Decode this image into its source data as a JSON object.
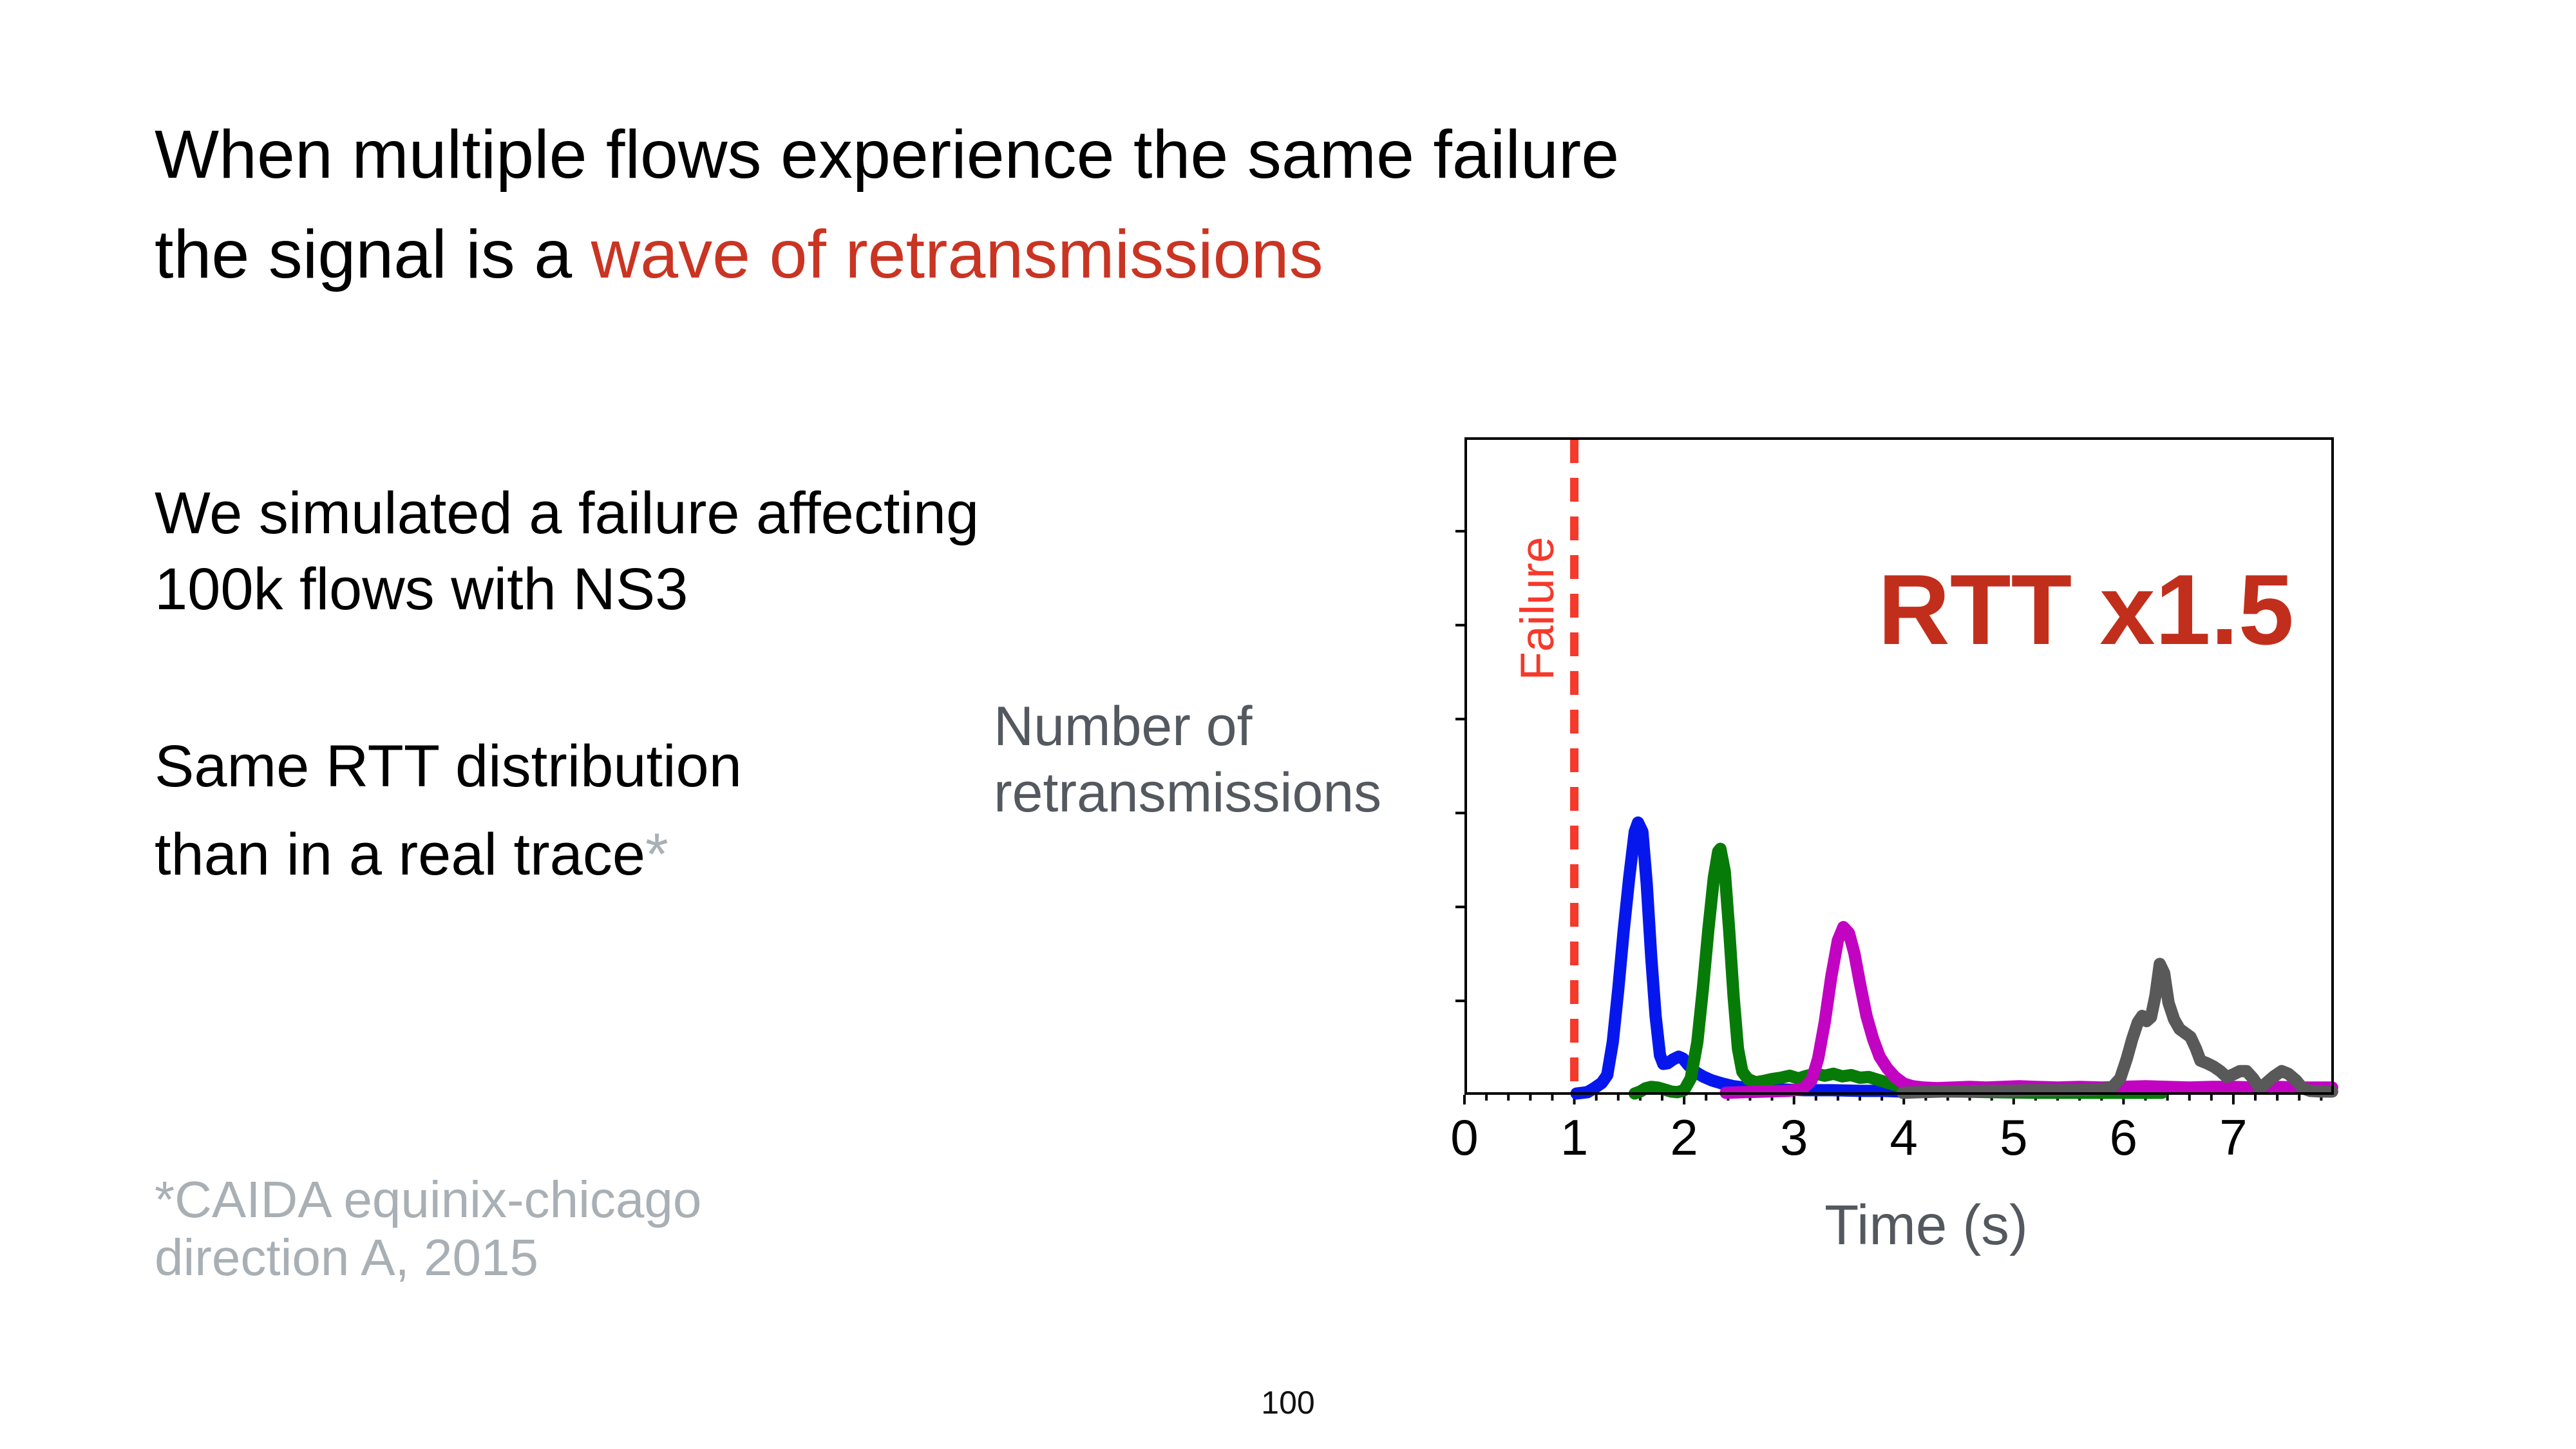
{
  "slide": {
    "background": "#ffffff",
    "title": {
      "line1": "When multiple flows experience the same failure",
      "line2_prefix": "the signal is a ",
      "line2_highlight": "wave of retransmissions"
    },
    "paragraph1": {
      "line1": "We simulated a failure affecting",
      "line2": "100k flows with NS3"
    },
    "paragraph2": {
      "line1": "Same RTT distribution",
      "line2_text": "than in a real trace",
      "line2_footnote_marker": "*"
    },
    "footnote": {
      "line1": "*CAIDA equinix-chicago",
      "line2": "direction A, 2015"
    },
    "page_number": "100"
  },
  "colors": {
    "text_black": "#000000",
    "title_highlight_red": "#ca3422",
    "annotation_red": "#c22e1c",
    "failure_red": "#f5392b",
    "axis_label_gray": "#54585f",
    "footnote_gray": "#a9b0b5",
    "series_blue": "#0617ee",
    "series_green": "#077b07",
    "series_magenta": "#c203c2",
    "series_gray": "#595959",
    "axis_black": "#000000"
  },
  "chart_data": {
    "type": "line",
    "xlabel": "Time (s)",
    "ylabel_line1": "Number of",
    "ylabel_line2": "retransmissions",
    "annotation": "RTT x1.5",
    "failure_label": "Failure",
    "failure_time": 1.0,
    "x_ticks": [
      0,
      1,
      2,
      3,
      4,
      5,
      6,
      7
    ],
    "x_minor_tick_step": 0.2,
    "xlim": [
      0,
      7.915
    ],
    "ylim_fraction": [
      0,
      1
    ],
    "y_minor_tick_count": 6,
    "grid": false,
    "legend": "none",
    "y_unit": "fraction of plot height (axis unlabeled in source)",
    "series": [
      {
        "name": "retransmission-wave-1",
        "color": "#0617ee",
        "peak_time": 1.58,
        "peak_height": 0.414,
        "points": [
          [
            1.02,
            0.002
          ],
          [
            1.12,
            0.004
          ],
          [
            1.18,
            0.01
          ],
          [
            1.25,
            0.018
          ],
          [
            1.3,
            0.03
          ],
          [
            1.35,
            0.08
          ],
          [
            1.4,
            0.16
          ],
          [
            1.45,
            0.25
          ],
          [
            1.5,
            0.33
          ],
          [
            1.55,
            0.4
          ],
          [
            1.58,
            0.414
          ],
          [
            1.62,
            0.4
          ],
          [
            1.66,
            0.32
          ],
          [
            1.7,
            0.21
          ],
          [
            1.74,
            0.12
          ],
          [
            1.78,
            0.06
          ],
          [
            1.81,
            0.047
          ],
          [
            1.85,
            0.048
          ],
          [
            1.9,
            0.054
          ],
          [
            1.95,
            0.058
          ],
          [
            1.99,
            0.055
          ],
          [
            2.04,
            0.045
          ],
          [
            2.1,
            0.035
          ],
          [
            2.17,
            0.028
          ],
          [
            2.25,
            0.022
          ],
          [
            2.35,
            0.017
          ],
          [
            2.45,
            0.013
          ],
          [
            2.55,
            0.011
          ],
          [
            2.7,
            0.009
          ],
          [
            2.9,
            0.008
          ],
          [
            3.1,
            0.007
          ],
          [
            3.35,
            0.007
          ],
          [
            3.6,
            0.006
          ],
          [
            3.8,
            0.006
          ],
          [
            3.98,
            0.005
          ]
        ]
      },
      {
        "name": "retransmission-wave-2",
        "color": "#077b07",
        "peak_time": 2.33,
        "peak_height": 0.374,
        "points": [
          [
            1.55,
            0.002
          ],
          [
            1.6,
            0.005
          ],
          [
            1.65,
            0.01
          ],
          [
            1.7,
            0.012
          ],
          [
            1.76,
            0.011
          ],
          [
            1.82,
            0.008
          ],
          [
            1.88,
            0.005
          ],
          [
            1.94,
            0.004
          ],
          [
            2.0,
            0.007
          ],
          [
            2.06,
            0.025
          ],
          [
            2.12,
            0.08
          ],
          [
            2.17,
            0.16
          ],
          [
            2.22,
            0.25
          ],
          [
            2.27,
            0.33
          ],
          [
            2.31,
            0.37
          ],
          [
            2.33,
            0.374
          ],
          [
            2.37,
            0.34
          ],
          [
            2.41,
            0.25
          ],
          [
            2.45,
            0.15
          ],
          [
            2.49,
            0.07
          ],
          [
            2.53,
            0.035
          ],
          [
            2.58,
            0.024
          ],
          [
            2.65,
            0.019
          ],
          [
            2.72,
            0.021
          ],
          [
            2.8,
            0.024
          ],
          [
            2.88,
            0.026
          ],
          [
            2.96,
            0.029
          ],
          [
            3.04,
            0.025
          ],
          [
            3.12,
            0.029
          ],
          [
            3.2,
            0.032
          ],
          [
            3.28,
            0.029
          ],
          [
            3.36,
            0.032
          ],
          [
            3.44,
            0.028
          ],
          [
            3.52,
            0.03
          ],
          [
            3.6,
            0.026
          ],
          [
            3.68,
            0.027
          ],
          [
            3.76,
            0.023
          ],
          [
            3.84,
            0.019
          ],
          [
            3.92,
            0.015
          ],
          [
            4.0,
            0.011
          ],
          [
            4.1,
            0.008
          ],
          [
            4.25,
            0.006
          ],
          [
            4.5,
            0.005
          ],
          [
            4.8,
            0.004
          ],
          [
            5.2,
            0.003
          ],
          [
            5.7,
            0.003
          ],
          [
            6.35,
            0.003
          ]
        ]
      },
      {
        "name": "retransmission-wave-3",
        "color": "#c203c2",
        "peak_time": 3.45,
        "peak_height": 0.255,
        "points": [
          [
            2.38,
            0.003
          ],
          [
            2.55,
            0.004
          ],
          [
            2.75,
            0.005
          ],
          [
            2.95,
            0.006
          ],
          [
            3.08,
            0.009
          ],
          [
            3.16,
            0.022
          ],
          [
            3.22,
            0.055
          ],
          [
            3.28,
            0.11
          ],
          [
            3.34,
            0.18
          ],
          [
            3.4,
            0.235
          ],
          [
            3.45,
            0.255
          ],
          [
            3.5,
            0.246
          ],
          [
            3.55,
            0.215
          ],
          [
            3.6,
            0.17
          ],
          [
            3.66,
            0.12
          ],
          [
            3.72,
            0.085
          ],
          [
            3.78,
            0.058
          ],
          [
            3.85,
            0.04
          ],
          [
            3.92,
            0.027
          ],
          [
            4.0,
            0.017
          ],
          [
            4.08,
            0.013
          ],
          [
            4.18,
            0.011
          ],
          [
            4.3,
            0.01
          ],
          [
            4.45,
            0.011
          ],
          [
            4.6,
            0.012
          ],
          [
            4.75,
            0.011
          ],
          [
            4.9,
            0.012
          ],
          [
            5.05,
            0.013
          ],
          [
            5.2,
            0.012
          ],
          [
            5.4,
            0.011
          ],
          [
            5.6,
            0.012
          ],
          [
            5.8,
            0.011
          ],
          [
            6.0,
            0.012
          ],
          [
            6.2,
            0.013
          ],
          [
            6.4,
            0.012
          ],
          [
            6.6,
            0.011
          ],
          [
            6.8,
            0.012
          ],
          [
            7.0,
            0.012
          ],
          [
            7.2,
            0.011
          ],
          [
            7.4,
            0.012
          ],
          [
            7.6,
            0.011
          ],
          [
            7.8,
            0.011
          ],
          [
            7.9,
            0.011
          ]
        ]
      },
      {
        "name": "retransmission-wave-4",
        "color": "#595959",
        "peak_time": 6.33,
        "peak_height": 0.199,
        "points": [
          [
            3.99,
            0.003
          ],
          [
            4.15,
            0.004
          ],
          [
            4.35,
            0.005
          ],
          [
            4.55,
            0.005
          ],
          [
            4.75,
            0.006
          ],
          [
            4.95,
            0.006
          ],
          [
            5.15,
            0.007
          ],
          [
            5.35,
            0.007
          ],
          [
            5.55,
            0.007
          ],
          [
            5.7,
            0.008
          ],
          [
            5.82,
            0.009
          ],
          [
            5.9,
            0.012
          ],
          [
            5.97,
            0.025
          ],
          [
            6.03,
            0.055
          ],
          [
            6.08,
            0.085
          ],
          [
            6.13,
            0.11
          ],
          [
            6.17,
            0.12
          ],
          [
            6.21,
            0.112
          ],
          [
            6.25,
            0.118
          ],
          [
            6.29,
            0.15
          ],
          [
            6.33,
            0.199
          ],
          [
            6.37,
            0.185
          ],
          [
            6.41,
            0.14
          ],
          [
            6.46,
            0.115
          ],
          [
            6.51,
            0.1
          ],
          [
            6.56,
            0.094
          ],
          [
            6.61,
            0.088
          ],
          [
            6.66,
            0.07
          ],
          [
            6.7,
            0.052
          ],
          [
            6.76,
            0.048
          ],
          [
            6.82,
            0.043
          ],
          [
            6.88,
            0.036
          ],
          [
            6.94,
            0.027
          ],
          [
            7.0,
            0.031
          ],
          [
            7.06,
            0.036
          ],
          [
            7.12,
            0.036
          ],
          [
            7.18,
            0.025
          ],
          [
            7.24,
            0.01
          ],
          [
            7.3,
            0.018
          ],
          [
            7.37,
            0.028
          ],
          [
            7.44,
            0.036
          ],
          [
            7.5,
            0.032
          ],
          [
            7.57,
            0.022
          ],
          [
            7.63,
            0.01
          ],
          [
            7.7,
            0.006
          ],
          [
            7.8,
            0.005
          ],
          [
            7.9,
            0.005
          ]
        ]
      }
    ]
  }
}
